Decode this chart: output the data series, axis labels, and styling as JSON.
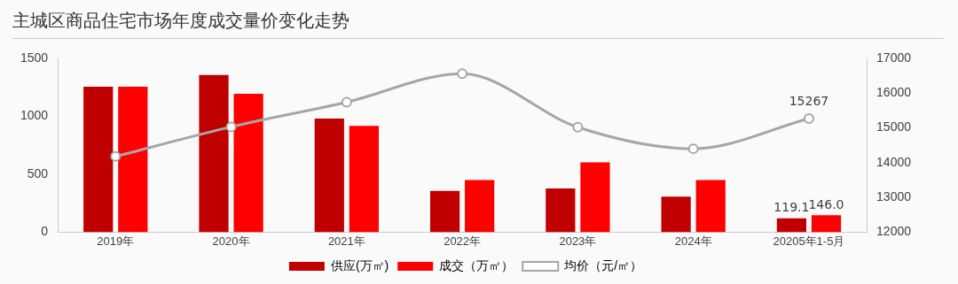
{
  "chart_data": {
    "type": "bar",
    "title": "主城区商品住宅市场年度成交量价变化走势",
    "categories": [
      "2019年",
      "2020年",
      "2021年",
      "2022年",
      "2023年",
      "2024年",
      "20205年1-5月"
    ],
    "series": [
      {
        "name": "供应(万㎡)",
        "color": "#c00000",
        "values": [
          1255,
          1357,
          980,
          357,
          378,
          306,
          119.1
        ],
        "value_labels": [
          null,
          null,
          null,
          null,
          null,
          null,
          "119.1"
        ]
      },
      {
        "name": "成交（万㎡）",
        "color": "#ff0000",
        "values": [
          1255,
          1194,
          918,
          449,
          602,
          449,
          146.0
        ],
        "value_labels": [
          null,
          null,
          null,
          null,
          null,
          null,
          "146.0"
        ]
      },
      {
        "name": "均价（元/㎡）",
        "type": "line",
        "axis": "y2",
        "color": "#a6a6a6",
        "marker": "circle",
        "values": [
          14180,
          15030,
          15740,
          16560,
          15020,
          14400,
          15267
        ],
        "value_labels": [
          null,
          null,
          null,
          null,
          null,
          null,
          "15267"
        ]
      }
    ],
    "ylim": [
      0,
      1500
    ],
    "yticks": [
      0,
      500,
      1000,
      1500
    ],
    "y2lim": [
      12000,
      17000
    ],
    "y2ticks": [
      12000,
      13000,
      14000,
      15000,
      16000,
      17000
    ],
    "grid": false,
    "legend": "bottom"
  }
}
